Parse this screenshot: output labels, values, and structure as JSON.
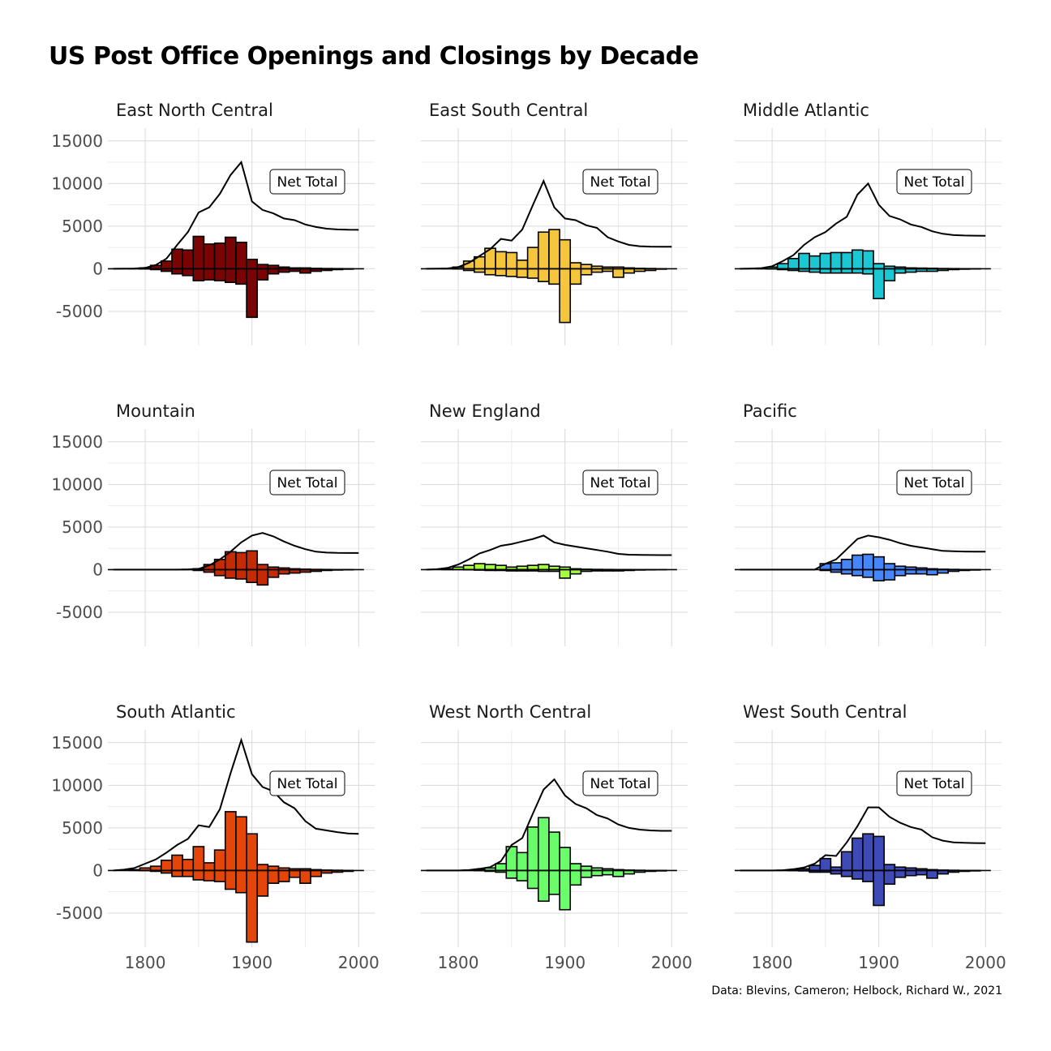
{
  "title": "US Post Office Openings and Closings by Decade",
  "caption": "Data: Blevins, Cameron; Helbock, Richard W., 2021",
  "chart_data": {
    "type": "bar",
    "layout": "facet-3x3",
    "grid": true,
    "net_label": "Net Total",
    "x_ticks": [
      "1800",
      "1900",
      "2000"
    ],
    "y_ticks": [
      "-5000",
      "0",
      "5000",
      "10000",
      "15000"
    ],
    "xlim": [
      1765,
      2015
    ],
    "ylim": [
      -9000,
      16500
    ],
    "decades": [
      1770,
      1780,
      1790,
      1800,
      1810,
      1820,
      1830,
      1840,
      1850,
      1860,
      1870,
      1880,
      1890,
      1900,
      1910,
      1920,
      1930,
      1940,
      1950,
      1960,
      1970,
      1980,
      1990,
      2000
    ],
    "panels": [
      {
        "name": "East North Central",
        "color": "#7a0403",
        "openings": [
          0,
          0,
          20,
          100,
          400,
          900,
          2300,
          2200,
          3800,
          2900,
          3000,
          3700,
          3100,
          1100,
          500,
          400,
          200,
          100,
          100,
          50,
          30,
          20,
          10,
          0
        ],
        "closings": [
          0,
          0,
          0,
          -20,
          -100,
          -300,
          -600,
          -800,
          -1400,
          -1300,
          -1400,
          -1600,
          -1800,
          -5700,
          -1300,
          -600,
          -400,
          -300,
          -500,
          -300,
          -200,
          -100,
          -50,
          0
        ],
        "net": [
          0,
          10,
          30,
          110,
          450,
          1200,
          2800,
          4300,
          6600,
          7200,
          8800,
          11000,
          12500,
          7900,
          6900,
          6500,
          5900,
          5700,
          5200,
          4900,
          4700,
          4620,
          4580,
          4570
        ]
      },
      {
        "name": "East South Central",
        "color": "#f5c63c",
        "openings": [
          0,
          0,
          30,
          200,
          900,
          1400,
          2400,
          2000,
          1900,
          1000,
          2500,
          4300,
          4600,
          3400,
          700,
          500,
          300,
          200,
          200,
          100,
          50,
          30,
          10,
          0
        ],
        "closings": [
          0,
          0,
          0,
          -20,
          -200,
          -400,
          -700,
          -800,
          -900,
          -1000,
          -1100,
          -1500,
          -1800,
          -6300,
          -1800,
          -700,
          -400,
          -300,
          -1000,
          -500,
          -300,
          -200,
          -50,
          0
        ],
        "net": [
          0,
          10,
          40,
          200,
          700,
          1500,
          2300,
          3500,
          3300,
          4600,
          7500,
          10300,
          7200,
          5900,
          5700,
          5100,
          4800,
          3700,
          3200,
          2800,
          2650,
          2600,
          2590,
          2580
        ]
      },
      {
        "name": "Middle Atlantic",
        "color": "#1ac7d3",
        "openings": [
          0,
          0,
          30,
          200,
          600,
          1200,
          1800,
          1500,
          1800,
          1900,
          1900,
          2200,
          2100,
          600,
          300,
          200,
          100,
          80,
          60,
          30,
          20,
          10,
          5,
          0
        ],
        "closings": [
          0,
          0,
          0,
          -20,
          -100,
          -200,
          -300,
          -400,
          -500,
          -500,
          -500,
          -500,
          -600,
          -3500,
          -1400,
          -500,
          -400,
          -300,
          -300,
          -200,
          -100,
          -50,
          -20,
          0
        ],
        "net": [
          0,
          30,
          80,
          300,
          900,
          1600,
          2800,
          3700,
          4300,
          5300,
          6100,
          8700,
          10000,
          7500,
          6200,
          5800,
          5200,
          4900,
          4400,
          4100,
          3950,
          3900,
          3880,
          3870
        ]
      },
      {
        "name": "Mountain",
        "color": "#c42a04",
        "openings": [
          0,
          0,
          0,
          0,
          0,
          0,
          0,
          30,
          100,
          600,
          1200,
          2100,
          2000,
          2200,
          600,
          300,
          200,
          100,
          60,
          30,
          20,
          10,
          5,
          0
        ],
        "closings": [
          0,
          0,
          0,
          0,
          0,
          0,
          0,
          0,
          -100,
          -300,
          -700,
          -1000,
          -1100,
          -1500,
          -1800,
          -900,
          -500,
          -400,
          -300,
          -200,
          -100,
          -50,
          -20,
          0
        ],
        "net": [
          0,
          0,
          0,
          0,
          0,
          0,
          0,
          30,
          100,
          500,
          1200,
          2100,
          3200,
          4000,
          4300,
          3900,
          3300,
          2800,
          2400,
          2100,
          2000,
          1960,
          1950,
          1950
        ]
      },
      {
        "name": "New England",
        "color": "#a4fc3c",
        "openings": [
          0,
          0,
          100,
          300,
          500,
          700,
          600,
          500,
          300,
          400,
          500,
          600,
          400,
          300,
          100,
          50,
          30,
          20,
          10,
          5,
          0,
          0,
          0,
          0
        ],
        "closings": [
          0,
          0,
          0,
          0,
          -20,
          -60,
          -100,
          -100,
          -150,
          -150,
          -150,
          -200,
          -200,
          -1000,
          -500,
          -200,
          -150,
          -150,
          -150,
          -100,
          -50,
          -30,
          -10,
          0
        ],
        "net": [
          0,
          50,
          200,
          600,
          1200,
          1900,
          2300,
          2800,
          3000,
          3300,
          3600,
          4000,
          3200,
          2900,
          2700,
          2500,
          2300,
          2100,
          1850,
          1750,
          1720,
          1710,
          1700,
          1700
        ]
      },
      {
        "name": "Pacific",
        "color": "#4686fb",
        "openings": [
          0,
          0,
          0,
          0,
          0,
          0,
          0,
          0,
          700,
          800,
          1200,
          1700,
          1800,
          1500,
          700,
          400,
          300,
          200,
          100,
          50,
          30,
          10,
          5,
          0
        ],
        "closings": [
          0,
          0,
          0,
          0,
          0,
          0,
          0,
          0,
          -100,
          -300,
          -500,
          -700,
          -900,
          -1300,
          -1200,
          -700,
          -500,
          -500,
          -600,
          -400,
          -200,
          -100,
          -50,
          0
        ],
        "net": [
          0,
          0,
          0,
          0,
          0,
          0,
          0,
          0,
          700,
          1200,
          2400,
          3600,
          4000,
          3800,
          3500,
          3100,
          2800,
          2600,
          2400,
          2200,
          2150,
          2120,
          2110,
          2100
        ]
      },
      {
        "name": "South Atlantic",
        "color": "#e4460a",
        "openings": [
          0,
          0,
          100,
          300,
          500,
          1200,
          1800,
          1300,
          2800,
          900,
          2400,
          6900,
          6300,
          4300,
          700,
          500,
          300,
          200,
          200,
          100,
          50,
          30,
          10,
          0
        ],
        "closings": [
          0,
          0,
          0,
          -20,
          -100,
          -300,
          -700,
          -700,
          -1100,
          -1200,
          -1300,
          -2200,
          -2600,
          -8400,
          -3000,
          -1500,
          -1300,
          -800,
          -1500,
          -700,
          -300,
          -200,
          -100,
          0
        ],
        "net": [
          0,
          100,
          300,
          800,
          1300,
          2100,
          3000,
          3700,
          5300,
          5100,
          7200,
          11400,
          15300,
          11300,
          9800,
          9300,
          8000,
          7300,
          5800,
          4900,
          4700,
          4500,
          4350,
          4300
        ]
      },
      {
        "name": "West North Central",
        "color": "#6afd6a",
        "openings": [
          0,
          0,
          0,
          0,
          50,
          150,
          300,
          800,
          2800,
          2100,
          5100,
          6200,
          4500,
          2700,
          800,
          500,
          300,
          200,
          100,
          50,
          30,
          10,
          5,
          0
        ],
        "closings": [
          0,
          0,
          0,
          0,
          0,
          -20,
          -100,
          -200,
          -900,
          -1200,
          -2100,
          -3600,
          -2800,
          -4600,
          -1700,
          -800,
          -600,
          -500,
          -700,
          -400,
          -200,
          -100,
          -50,
          0
        ],
        "net": [
          0,
          0,
          0,
          0,
          50,
          200,
          400,
          1100,
          3000,
          3800,
          6700,
          9500,
          10700,
          8800,
          7800,
          7300,
          6500,
          6100,
          5400,
          5000,
          4800,
          4700,
          4650,
          4650
        ]
      },
      {
        "name": "West South Central",
        "color": "#3e4ab6",
        "openings": [
          0,
          0,
          0,
          0,
          30,
          100,
          200,
          600,
          1400,
          400,
          2200,
          3800,
          4300,
          4000,
          700,
          400,
          300,
          200,
          100,
          50,
          30,
          10,
          5,
          0
        ],
        "closings": [
          0,
          0,
          0,
          0,
          0,
          -20,
          -50,
          -200,
          -200,
          -400,
          -700,
          -1000,
          -1300,
          -4100,
          -1600,
          -800,
          -600,
          -500,
          -900,
          -400,
          -200,
          -100,
          -50,
          0
        ],
        "net": [
          0,
          0,
          0,
          0,
          30,
          150,
          350,
          800,
          1800,
          1700,
          3300,
          5200,
          7400,
          7400,
          6300,
          5600,
          5100,
          4800,
          3900,
          3500,
          3300,
          3250,
          3220,
          3200
        ]
      }
    ]
  }
}
